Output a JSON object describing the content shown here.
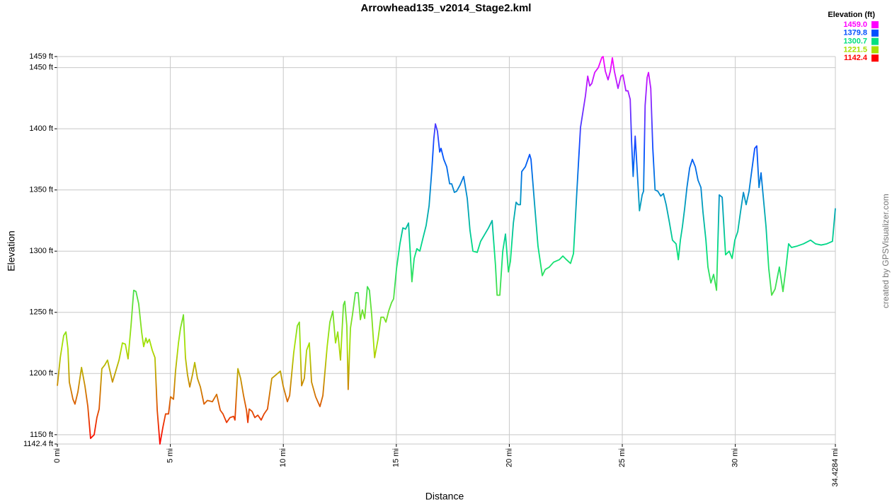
{
  "chart_data": {
    "type": "line",
    "title": "Arrowhead135_v2014_Stage2.kml",
    "x_label": "Distance",
    "y_label": "Elevation",
    "credit": "created by GPSVisualizer.com",
    "legend_title": "Elevation (ft)",
    "color_scale": [
      {
        "value": 1459.0,
        "label": "1459.0",
        "color": "#ff00ff"
      },
      {
        "value": 1379.8,
        "label": "1379.8",
        "color": "#0050ff"
      },
      {
        "value": 1300.7,
        "label": "1300.7",
        "color": "#00e080"
      },
      {
        "value": 1221.5,
        "label": "1221.5",
        "color": "#a8e000"
      },
      {
        "value": 1142.4,
        "label": "1142.4",
        "color": "#ff0000"
      }
    ],
    "xlim": [
      0,
      34.4284
    ],
    "ylim": [
      1142.4,
      1459
    ],
    "xticks": [
      {
        "value": 0,
        "label": "0 mi"
      },
      {
        "value": 5,
        "label": "5 mi"
      },
      {
        "value": 10,
        "label": "10 mi"
      },
      {
        "value": 15,
        "label": "15 mi"
      },
      {
        "value": 20,
        "label": "20 mi"
      },
      {
        "value": 25,
        "label": "25 mi"
      },
      {
        "value": 30,
        "label": "30 mi"
      },
      {
        "value": 34.4284,
        "label": "34.4284 mi"
      }
    ],
    "yticks": [
      {
        "value": 1142.4,
        "label": "1142.4 ft"
      },
      {
        "value": 1150,
        "label": "1150 ft"
      },
      {
        "value": 1200,
        "label": "1200 ft"
      },
      {
        "value": 1250,
        "label": "1250 ft"
      },
      {
        "value": 1300,
        "label": "1300 ft"
      },
      {
        "value": 1350,
        "label": "1350 ft"
      },
      {
        "value": 1400,
        "label": "1400 ft"
      },
      {
        "value": 1450,
        "label": "1450 ft"
      },
      {
        "value": 1459,
        "label": "1459 ft"
      }
    ],
    "grid": true,
    "x": [
      0,
      0.13,
      0.28,
      0.38,
      0.47,
      0.53,
      0.69,
      0.78,
      0.91,
      1.07,
      1.22,
      1.35,
      1.47,
      1.63,
      1.75,
      1.85,
      1.97,
      2.1,
      2.22,
      2.44,
      2.57,
      2.73,
      2.88,
      3.01,
      3.13,
      3.26,
      3.38,
      3.48,
      3.6,
      3.73,
      3.82,
      3.92,
      3.98,
      4.07,
      4.2,
      4.32,
      4.42,
      4.54,
      4.67,
      4.79,
      4.92,
      5.01,
      5.14,
      5.23,
      5.36,
      5.45,
      5.58,
      5.67,
      5.76,
      5.86,
      5.98,
      6.08,
      6.2,
      6.33,
      6.49,
      6.64,
      6.86,
      7.05,
      7.21,
      7.33,
      7.49,
      7.64,
      7.8,
      7.86,
      7.99,
      8.11,
      8.24,
      8.37,
      8.43,
      8.49,
      8.62,
      8.74,
      8.87,
      9.02,
      9.15,
      9.3,
      9.49,
      9.68,
      9.87,
      9.99,
      10.18,
      10.28,
      10.46,
      10.62,
      10.71,
      10.81,
      10.93,
      11.03,
      11.15,
      11.25,
      11.43,
      11.62,
      11.75,
      11.94,
      12.06,
      12.19,
      12.31,
      12.41,
      12.53,
      12.66,
      12.72,
      12.81,
      12.87,
      12.97,
      13.06,
      13.19,
      13.31,
      13.41,
      13.5,
      13.6,
      13.72,
      13.81,
      13.91,
      14.04,
      14.19,
      14.32,
      14.44,
      14.54,
      14.66,
      14.79,
      14.88,
      15.01,
      15.16,
      15.29,
      15.41,
      15.54,
      15.69,
      15.79,
      15.91,
      16.04,
      16.17,
      16.32,
      16.45,
      16.57,
      16.66,
      16.73,
      16.82,
      16.92,
      16.98,
      17.1,
      17.23,
      17.36,
      17.45,
      17.57,
      17.67,
      17.82,
      17.98,
      18.14,
      18.26,
      18.39,
      18.58,
      18.73,
      18.89,
      19.08,
      19.24,
      19.39,
      19.46,
      19.58,
      19.71,
      19.83,
      19.96,
      20.05,
      20.18,
      20.3,
      20.39,
      20.49,
      20.55,
      20.71,
      20.9,
      20.96,
      21.12,
      21.27,
      21.46,
      21.59,
      21.77,
      21.96,
      22.21,
      22.37,
      22.53,
      22.71,
      22.84,
      22.99,
      23.15,
      23.37,
      23.47,
      23.56,
      23.65,
      23.78,
      23.94,
      24.09,
      24.15,
      24.25,
      24.37,
      24.47,
      24.56,
      24.65,
      24.81,
      24.94,
      25.03,
      25.16,
      25.25,
      25.35,
      25.41,
      25.48,
      25.57,
      25.63,
      25.76,
      25.88,
      25.94,
      26.01,
      26.1,
      26.16,
      26.26,
      26.35,
      26.45,
      26.57,
      26.7,
      26.82,
      26.94,
      27.07,
      27.22,
      27.38,
      27.48,
      27.57,
      27.66,
      27.76,
      27.86,
      27.98,
      28.1,
      28.23,
      28.35,
      28.48,
      28.57,
      28.7,
      28.79,
      28.92,
      29.04,
      29.17,
      29.29,
      29.42,
      29.57,
      29.73,
      29.86,
      29.98,
      30.11,
      30.23,
      30.36,
      30.48,
      30.61,
      30.73,
      30.86,
      30.95,
      31.05,
      31.14,
      31.23,
      31.36,
      31.48,
      31.61,
      31.76,
      31.95,
      32.11,
      32.24,
      32.36,
      32.49,
      32.71,
      33.02,
      33.33,
      33.55,
      33.8,
      34.05,
      34.3,
      34.4284
    ],
    "values": [
      1190,
      1213,
      1231,
      1234,
      1220,
      1193,
      1179,
      1175,
      1185,
      1205,
      1190,
      1173,
      1147,
      1150,
      1164,
      1171,
      1204,
      1207,
      1211,
      1193,
      1201,
      1211,
      1225,
      1224,
      1212,
      1239,
      1268,
      1267,
      1257,
      1234,
      1222,
      1229,
      1225,
      1228,
      1219,
      1213,
      1170,
      1142.4,
      1156,
      1167,
      1167,
      1181,
      1179,
      1202,
      1225,
      1237,
      1248,
      1213,
      1199,
      1189,
      1199,
      1209,
      1196,
      1189,
      1175,
      1178,
      1177,
      1183,
      1170,
      1167,
      1160,
      1164,
      1165,
      1162,
      1204,
      1196,
      1182,
      1170,
      1160,
      1171,
      1169,
      1164,
      1166,
      1162,
      1167,
      1171,
      1196,
      1199,
      1202,
      1190,
      1177,
      1182,
      1217,
      1239,
      1242,
      1190,
      1196,
      1219,
      1225,
      1193,
      1181,
      1173,
      1182,
      1222,
      1242,
      1251,
      1225,
      1234,
      1211,
      1256,
      1259,
      1239,
      1187,
      1237,
      1248,
      1266,
      1266,
      1244,
      1252,
      1245,
      1271,
      1268,
      1248,
      1213,
      1228,
      1246,
      1246,
      1242,
      1251,
      1258,
      1261,
      1286,
      1306,
      1319,
      1318,
      1323,
      1275,
      1294,
      1302,
      1300,
      1310,
      1321,
      1337,
      1366,
      1392,
      1404,
      1398,
      1381,
      1384,
      1375,
      1369,
      1355,
      1355,
      1348,
      1349,
      1354,
      1361,
      1343,
      1317,
      1300,
      1299,
      1308,
      1313,
      1319,
      1325,
      1288,
      1264,
      1264,
      1300,
      1314,
      1283,
      1292,
      1323,
      1340,
      1338,
      1338,
      1365,
      1369,
      1379,
      1375,
      1338,
      1304,
      1280,
      1285,
      1287,
      1291,
      1293,
      1296,
      1293,
      1290,
      1298,
      1349,
      1401,
      1427,
      1443,
      1435,
      1437,
      1446,
      1450,
      1458,
      1459,
      1447,
      1440,
      1447,
      1458,
      1447,
      1433,
      1443,
      1444,
      1431,
      1431,
      1424,
      1390,
      1361,
      1394,
      1375,
      1333,
      1346,
      1349,
      1419,
      1442,
      1446,
      1433,
      1384,
      1350,
      1349,
      1345,
      1347,
      1338,
      1325,
      1309,
      1306,
      1293,
      1309,
      1320,
      1335,
      1352,
      1368,
      1375,
      1369,
      1358,
      1352,
      1332,
      1309,
      1287,
      1274,
      1281,
      1268,
      1346,
      1344,
      1297,
      1300,
      1294,
      1309,
      1316,
      1332,
      1348,
      1338,
      1349,
      1366,
      1384,
      1386,
      1352,
      1364,
      1346,
      1320,
      1286,
      1264,
      1269,
      1287,
      1267,
      1286,
      1306,
      1303,
      1304,
      1306,
      1309,
      1306,
      1305,
      1306,
      1308,
      1335
    ]
  }
}
